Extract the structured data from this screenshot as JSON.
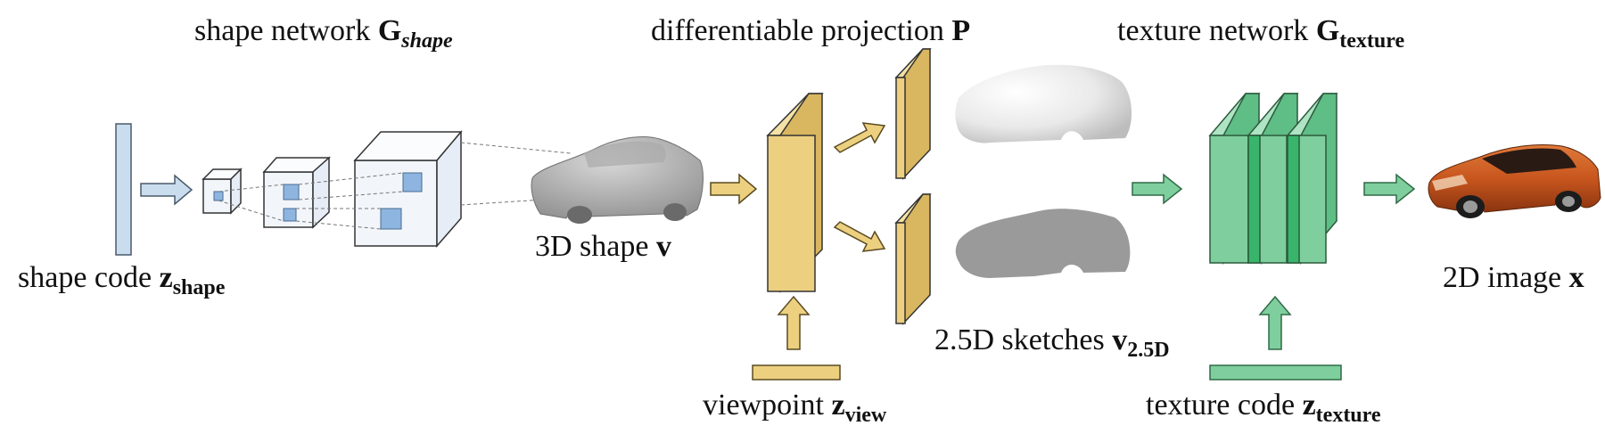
{
  "labels": {
    "shape_network": "shape network",
    "shape_network_G": "G",
    "shape_network_sub": "shape",
    "projection": "differentiable projection",
    "projection_P": "P",
    "texture_network": "texture network",
    "texture_network_G": "G",
    "texture_network_sub": "texture",
    "shape_code": "shape code",
    "shape_code_z": "z",
    "shape_code_sub": "shape",
    "shape_3d": "3D shape",
    "shape_3d_v": "v",
    "viewpoint": "viewpoint",
    "viewpoint_z": "z",
    "viewpoint_sub": "view",
    "sketches": "2.5D sketches",
    "sketches_v": "v",
    "sketches_sub": "2.5D",
    "texture_code": "texture code",
    "texture_code_z": "z",
    "texture_code_sub": "texture",
    "image_2d": "2D image",
    "image_2d_x": "x"
  },
  "colors": {
    "shape_blue": "#c9ddef",
    "cube_blue": "#8db5df",
    "view_yellow": "#ecd080",
    "texture_green": "#7fcf9e",
    "texture_green_dark": "#38b56a",
    "car_orange": "#c8561e"
  },
  "icons": {
    "car_mesh": "gray-3d-car-mesh",
    "depth_sketch": "depth-map-car-silhouette",
    "silhouette_sketch": "silhouette-car",
    "car_photo": "orange-sedan"
  }
}
